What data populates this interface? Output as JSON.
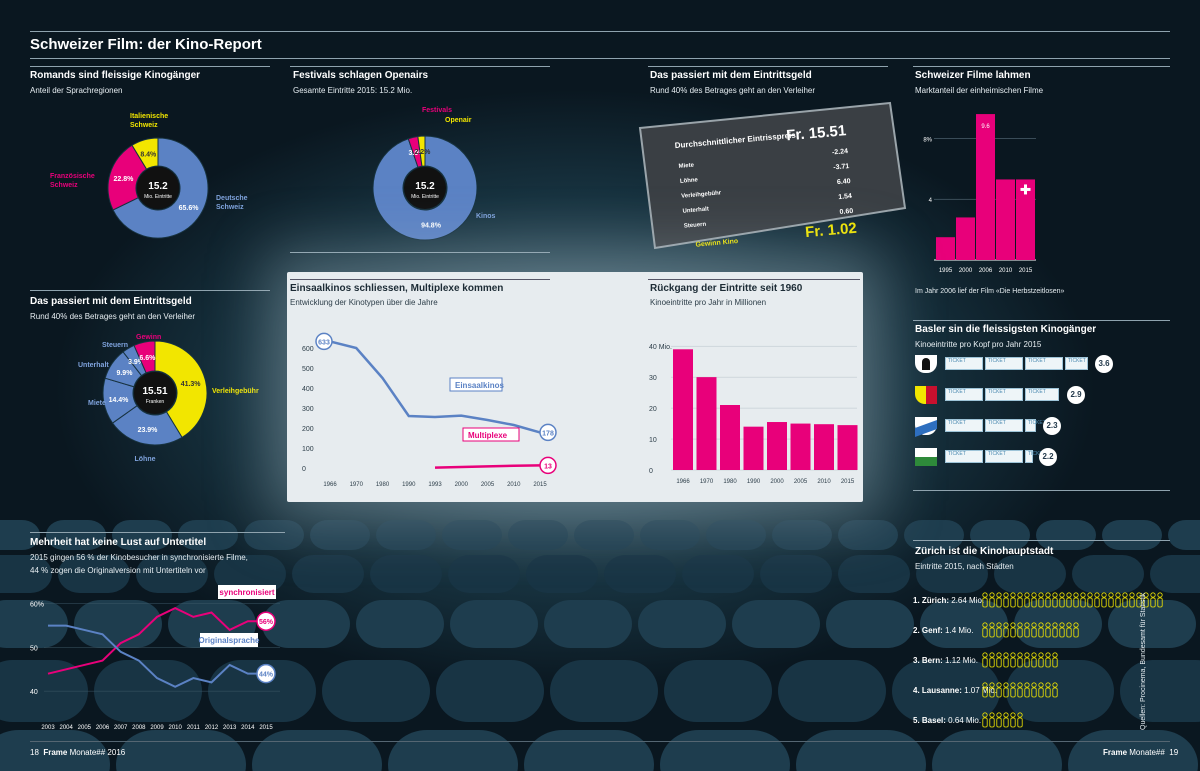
{
  "header": {
    "title": "Schweizer Film: der Kino-Report"
  },
  "sprach": {
    "title": "Romands sind fleissige Kinogänger",
    "subtitle": "Anteil der Sprachregionen",
    "center_value": "15.2",
    "center_label": "Mio. Eintritte",
    "chart_data": {
      "type": "pie",
      "labels": [
        "Deutsche Schweiz",
        "Französische Schweiz",
        "Italienische Schweiz"
      ],
      "values": [
        65.6,
        22.8,
        8.4
      ],
      "value_labels": [
        "65.6%",
        "22.8%",
        "8.4%"
      ],
      "colors": [
        "#5b82c4",
        "#e8007a",
        "#f2e600"
      ]
    }
  },
  "festivals": {
    "title": "Festivals schlagen Openairs",
    "subtitle": "Gesamte Eintritte 2015: 15.2 Mio.",
    "center_value": "15.2",
    "center_label": "Mio. Eintritte",
    "chart_data": {
      "type": "pie",
      "labels": [
        "Kinos",
        "Festivals",
        "Openair"
      ],
      "values": [
        94.8,
        3.0,
        2.2
      ],
      "value_labels": [
        "94.8%",
        "3.0%",
        "2.2%"
      ],
      "colors": [
        "#5b82c4",
        "#e8007a",
        "#f2e600"
      ]
    }
  },
  "ticket": {
    "title": "Das passiert mit dem Eintrittsgeld",
    "subtitle": "Rund 40% des Betrages geht an den Verleiher",
    "header_label": "Durchschnittlicher Eintrisspreis:",
    "header_value": "Fr. 15.51",
    "rows": [
      {
        "label": "Miete",
        "value": "-2.24"
      },
      {
        "label": "Löhne",
        "value": "-3.71"
      },
      {
        "label": "Verleihgebühr",
        "value": "6.40"
      },
      {
        "label": "Unterhalt",
        "value": "1.54"
      },
      {
        "label": "Steuern",
        "value": "0.60"
      }
    ],
    "profit_label": "Gewinn Kino",
    "profit_value": "Fr. 1.02"
  },
  "marktanteil": {
    "title": "Schweizer Filme lahmen",
    "subtitle": "Marktanteil der einheimischen Filme",
    "note": "Im Jahr 2006 lief der Film «Die Herbstzeitlosen»",
    "peak_label": "9.6",
    "chart_data": {
      "type": "bar",
      "categories": [
        "1995",
        "2000",
        "2006",
        "2010",
        "2015"
      ],
      "values": [
        1.5,
        2.8,
        9.6,
        5.3,
        5.3
      ],
      "ylim": [
        0,
        10
      ],
      "yticks": [
        "4",
        "8%"
      ]
    }
  },
  "geld2": {
    "title": "Das passiert mit dem Eintrittsgeld",
    "subtitle": "Rund 40% des Betrages geht an den Verleiher",
    "center_value": "15.51",
    "center_label": "Franken",
    "chart_data": {
      "type": "pie",
      "labels": [
        "Verleihgebühr",
        "Löhne",
        "Miete",
        "Unterhalt",
        "Steuern",
        "Gewinn"
      ],
      "values": [
        41.3,
        23.9,
        14.4,
        9.9,
        3.9,
        6.6
      ],
      "value_labels": [
        "41.3%",
        "23.9%",
        "14.4%",
        "9.9%",
        "3.9%",
        "6.6%"
      ],
      "colors": [
        "#f2e600",
        "#5b82c4",
        "#5b82c4",
        "#5b82c4",
        "#5b82c4",
        "#e8007a"
      ]
    }
  },
  "kinotypen": {
    "title": "Einsaalkinos schliessen, Multiplexe kommen",
    "subtitle": "Entwicklung der Kinotypen über die Jahre",
    "chart_data": {
      "type": "line",
      "x": [
        "1966",
        "1970",
        "1980",
        "1990",
        "1993",
        "2000",
        "2005",
        "2010",
        "2015"
      ],
      "ylim": [
        0,
        650
      ],
      "yticks": [
        "0",
        "100",
        "200",
        "300",
        "400",
        "500",
        "600"
      ],
      "series": [
        {
          "name": "Einsaalkinos",
          "values": [
            633,
            600,
            450,
            260,
            255,
            262,
            240,
            215,
            178
          ],
          "end_label": "178",
          "start_label": "633",
          "color": "#5b82c4"
        },
        {
          "name": "Multiplexe",
          "values": [
            null,
            null,
            null,
            null,
            2,
            5,
            8,
            11,
            13
          ],
          "end_label": "13",
          "color": "#e8007a"
        }
      ]
    }
  },
  "eintritte": {
    "title": "Rückgang der Eintritte seit 1960",
    "subtitle": "Kinoeintritte pro Jahr in Millionen",
    "chart_data": {
      "type": "bar",
      "categories": [
        "1966",
        "1970",
        "1980",
        "1990",
        "2000",
        "2005",
        "2010",
        "2015"
      ],
      "values": [
        39,
        30,
        21,
        14,
        15.5,
        15,
        14.8,
        14.5
      ],
      "ylim": [
        0,
        42
      ],
      "yticks": [
        "0",
        "10",
        "20",
        "30",
        "40 Mio."
      ]
    }
  },
  "basel": {
    "title": "Basler sin die fleissigsten Kinogänger",
    "subtitle": "Kinoeintritte pro Kopf pro Jahr 2015",
    "ticket_word": "TICKET",
    "rows": [
      {
        "value": 3.6,
        "label": "3.6"
      },
      {
        "value": 2.9,
        "label": "2.9"
      },
      {
        "value": 2.3,
        "label": "2.3"
      },
      {
        "value": 2.2,
        "label": "2.2"
      }
    ]
  },
  "untertitel": {
    "title": "Mehrheit hat keine Lust auf Untertitel",
    "subtitle1": "2015 gingen 56 % der Kinobesucher in synchronisierte Filme,",
    "subtitle2": "44 % zogen die Originalversion mit Untertiteln vor",
    "chart_data": {
      "type": "line",
      "x": [
        "2003",
        "2004",
        "2005",
        "2006",
        "2007",
        "2008",
        "2009",
        "2010",
        "2011",
        "2012",
        "2013",
        "2014",
        "2015"
      ],
      "ylim": [
        35,
        62
      ],
      "yticks": [
        "40",
        "50",
        "60%"
      ],
      "series": [
        {
          "name": "synchronisiert",
          "values": [
            44,
            45,
            46,
            47,
            51,
            53,
            57,
            59,
            57,
            58,
            54,
            56,
            56
          ],
          "end_label": "56%",
          "color": "#e8007a"
        },
        {
          "name": "Originalsprache",
          "values": [
            55,
            55,
            54,
            53,
            49,
            47,
            43,
            41,
            43,
            42,
            46,
            44,
            44
          ],
          "end_label": "44%",
          "color": "#5b82c4"
        }
      ]
    }
  },
  "zuerich": {
    "title": "Zürich ist die Kinohauptstadt",
    "subtitle": "Eintritte 2015, nach Städten",
    "source": "Quellen: Procinema, Bundesamt für Statistik",
    "rows": [
      {
        "rank": "1. Zürich:",
        "value_label": "2.64 Mio.",
        "value": 2.64
      },
      {
        "rank": "2. Genf:",
        "value_label": "1.4 Mio.",
        "value": 1.4
      },
      {
        "rank": "3. Bern:",
        "value_label": "1.12 Mio.",
        "value": 1.12
      },
      {
        "rank": "4. Lausanne:",
        "value_label": "1.07 Mio.",
        "value": 1.07
      },
      {
        "rank": "5. Basel:",
        "value_label": "0.64 Mio.",
        "value": 0.64
      }
    ]
  },
  "footer": {
    "left_page": "18",
    "left_brand": "Frame",
    "left_issue": "Monate## 2016",
    "right_brand": "Frame",
    "right_issue": "Monate##",
    "right_page": "19"
  }
}
